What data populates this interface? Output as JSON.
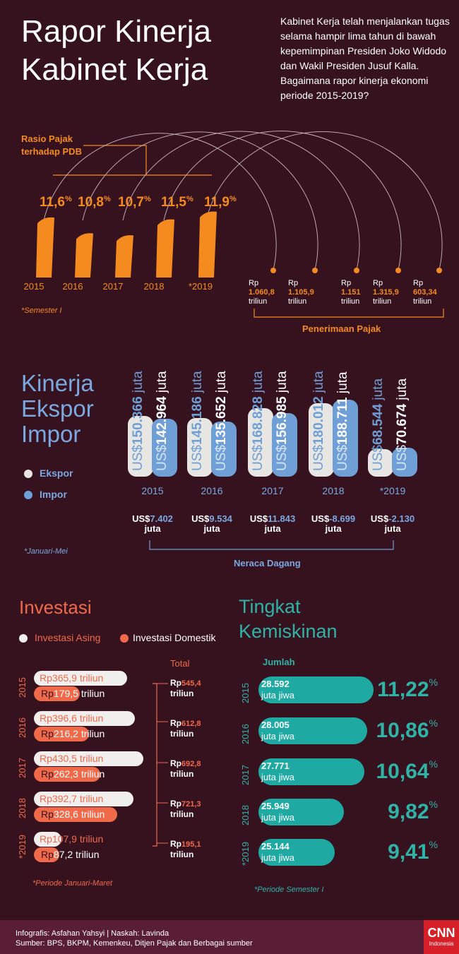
{
  "title": [
    "Rapor Kinerja",
    "Kabinet Kerja"
  ],
  "intro": "Kabinet Kerja telah menjalankan tugas selama hampir lima tahun di bawah kepemimpinan Presiden Joko Widodo dan Wakil Presiden Jusuf Kalla. Bagaimana rapor kinerja ekonomi periode 2015-2019?",
  "colors": {
    "background": "#36121f",
    "orange": "#f58a1f",
    "ekspor": "#e8e6e2",
    "impor": "#6e9fd6",
    "asing": "#f0efed",
    "domestik": "#f06a4a",
    "teal": "#1eaaa3"
  },
  "tax": {
    "ratio_label": [
      "Rasio Pajak",
      "terhadap PDB"
    ],
    "receipt_label": "Penerimaan Pajak",
    "note": "*Semester I",
    "years": [
      "2015",
      "2016",
      "2017",
      "2018",
      "*2019"
    ],
    "ratio": [
      {
        "v": "11,6",
        "u": "%"
      },
      {
        "v": "10,8",
        "u": "%"
      },
      {
        "v": "10,7",
        "u": "%"
      },
      {
        "v": "11,5",
        "u": "%"
      },
      {
        "v": "11,9",
        "u": "%"
      }
    ],
    "receipts": [
      {
        "rp": "Rp",
        "v": "1.060,8",
        "u": "triliun"
      },
      {
        "rp": "Rp",
        "v": "1.105,9",
        "u": "triliun"
      },
      {
        "rp": "Rp",
        "v": "1.151",
        "u": "triliun"
      },
      {
        "rp": "Rp",
        "v": "1.315,9",
        "u": "triliun"
      },
      {
        "rp": "Rp",
        "v": "603,34",
        "u": "triliun"
      }
    ]
  },
  "trade": {
    "title": [
      "Kinerja",
      "Ekspor",
      "Impor"
    ],
    "legend": [
      "Ekspor",
      "Impor"
    ],
    "note": "*Januari-Mei",
    "balance_label": "Neraca Dagang",
    "years": [
      "2015",
      "2016",
      "2017",
      "2018",
      "*2019"
    ],
    "ekspor": [
      {
        "p": "US$",
        "v": "150.366",
        "u": "juta"
      },
      {
        "p": "US$",
        "v": "145.186",
        "u": "juta"
      },
      {
        "p": "US$",
        "v": "168.828",
        "u": "juta"
      },
      {
        "p": "US$",
        "v": "180.012",
        "u": "juta"
      },
      {
        "p": "US$",
        "v": "68.544",
        "u": "juta"
      }
    ],
    "impor": [
      {
        "p": "US$",
        "v": "142.964",
        "u": "juta"
      },
      {
        "p": "US$",
        "v": "135.652",
        "u": "juta"
      },
      {
        "p": "US$",
        "v": "156.985",
        "u": "juta"
      },
      {
        "p": "US$",
        "v": "188.711",
        "u": "juta"
      },
      {
        "p": "US$",
        "v": "70.674",
        "u": "juta"
      }
    ],
    "balance": [
      {
        "p": "US$",
        "v": "7.402",
        "u": "juta"
      },
      {
        "p": "US$",
        "v": "9.534",
        "u": "juta"
      },
      {
        "p": "US$",
        "v": "11.843",
        "u": "juta"
      },
      {
        "p": "US$",
        "v": "-8.699",
        "u": "juta"
      },
      {
        "p": "US$",
        "v": "-2.130",
        "u": "juta"
      }
    ]
  },
  "invest": {
    "title": "Investasi",
    "legend": [
      "Investasi Asing",
      "Investasi Domestik"
    ],
    "total_label": "Total",
    "note": "*Periode Januari-Maret",
    "years": [
      "2015",
      "2016",
      "2017",
      "2018",
      "*2019"
    ],
    "asing": [
      {
        "p": "Rp",
        "v": "365,9",
        "u": "triliun"
      },
      {
        "p": "Rp",
        "v": "396,6",
        "u": "triliun"
      },
      {
        "p": "Rp",
        "v": "430,5",
        "u": "triliun"
      },
      {
        "p": "Rp",
        "v": "392,7",
        "u": "triliun"
      },
      {
        "p": "Rp",
        "v": "107,9",
        "u": "triliun"
      }
    ],
    "domestik": [
      {
        "p": "Rp",
        "v": "179,5",
        "u": "triliun"
      },
      {
        "p": "Rp",
        "v": "216,2",
        "u": "triliun"
      },
      {
        "p": "Rp",
        "v": "262,3",
        "u": "triliun"
      },
      {
        "p": "Rp",
        "v": "328,6",
        "u": "triliun"
      },
      {
        "p": "Rp",
        "v": "87,2",
        "u": "triliun"
      }
    ],
    "total": [
      {
        "p": "Rp",
        "v": "545,4",
        "u": "triliun"
      },
      {
        "p": "Rp",
        "v": "612,8",
        "u": "triliun"
      },
      {
        "p": "Rp",
        "v": "692,8",
        "u": "triliun"
      },
      {
        "p": "Rp",
        "v": "721,3",
        "u": "triliun"
      },
      {
        "p": "Rp",
        "v": "195,1",
        "u": "triliun"
      }
    ]
  },
  "poverty": {
    "title": [
      "Tingkat",
      "Kemiskinan"
    ],
    "count_label": "Jumlah",
    "note": "*Periode Semester I",
    "years": [
      "2015",
      "2016",
      "2017",
      "2018",
      "*2019"
    ],
    "count": [
      {
        "v": "28.592",
        "u": "juta jiwa"
      },
      {
        "v": "28.005",
        "u": "juta jiwa"
      },
      {
        "v": "27.771",
        "u": "juta jiwa"
      },
      {
        "v": "25.949",
        "u": "juta jiwa"
      },
      {
        "v": "25.144",
        "u": "juta jiwa"
      }
    ],
    "rate": [
      {
        "v": "11,22",
        "u": "%"
      },
      {
        "v": "10,86",
        "u": "%"
      },
      {
        "v": "10,64",
        "u": "%"
      },
      {
        "v": "9,82",
        "u": "%"
      },
      {
        "v": "9,41",
        "u": "%"
      }
    ]
  },
  "chart_data": [
    {
      "type": "bar",
      "title": "Rasio Pajak terhadap PDB",
      "categories": [
        "2015",
        "2016",
        "2017",
        "2018",
        "*2019"
      ],
      "values": [
        11.6,
        10.8,
        10.7,
        11.5,
        11.9
      ]
    },
    {
      "type": "bar",
      "title": "Penerimaan Pajak",
      "categories": [
        "2015",
        "2016",
        "2017",
        "2018",
        "*2019"
      ],
      "values": [
        1060.8,
        1105.9,
        1151,
        1315.9,
        603.34
      ]
    },
    {
      "type": "bar",
      "title": "Kinerja Ekspor Impor",
      "categories": [
        "2015",
        "2016",
        "2017",
        "2018",
        "*2019"
      ],
      "series": [
        {
          "name": "Ekspor",
          "values": [
            150366,
            145186,
            168828,
            180012,
            68544
          ]
        },
        {
          "name": "Impor",
          "values": [
            142964,
            135652,
            156985,
            188711,
            70674
          ]
        }
      ]
    },
    {
      "type": "table",
      "title": "Neraca Dagang",
      "categories": [
        "2015",
        "2016",
        "2017",
        "2018",
        "*2019"
      ],
      "values": [
        7402,
        9534,
        11843,
        -8699,
        -2130
      ]
    },
    {
      "type": "bar",
      "title": "Investasi",
      "categories": [
        "2015",
        "2016",
        "2017",
        "2018",
        "*2019"
      ],
      "series": [
        {
          "name": "Investasi Asing",
          "values": [
            365.9,
            396.6,
            430.5,
            392.7,
            107.9
          ]
        },
        {
          "name": "Investasi Domestik",
          "values": [
            179.5,
            216.2,
            262.3,
            328.6,
            87.2
          ]
        },
        {
          "name": "Total",
          "values": [
            545.4,
            612.8,
            692.8,
            721.3,
            195.1
          ]
        }
      ]
    },
    {
      "type": "bar",
      "title": "Tingkat Kemiskinan",
      "categories": [
        "2015",
        "2016",
        "2017",
        "2018",
        "*2019"
      ],
      "series": [
        {
          "name": "Jumlah",
          "values": [
            28592,
            28005,
            27771,
            25949,
            25144
          ]
        },
        {
          "values": [
            11.22,
            10.86,
            10.64,
            9.82,
            9.41
          ]
        }
      ]
    }
  ],
  "footer": {
    "credit": "Infografis: Asfahan Yahsyi | Naskah: Lavinda",
    "source": "Sumber: BPS, BKPM, Kemenkeu, Ditjen Pajak dan Berbagai sumber",
    "logo": "CNN",
    "logo_sub": "Indonesia"
  }
}
